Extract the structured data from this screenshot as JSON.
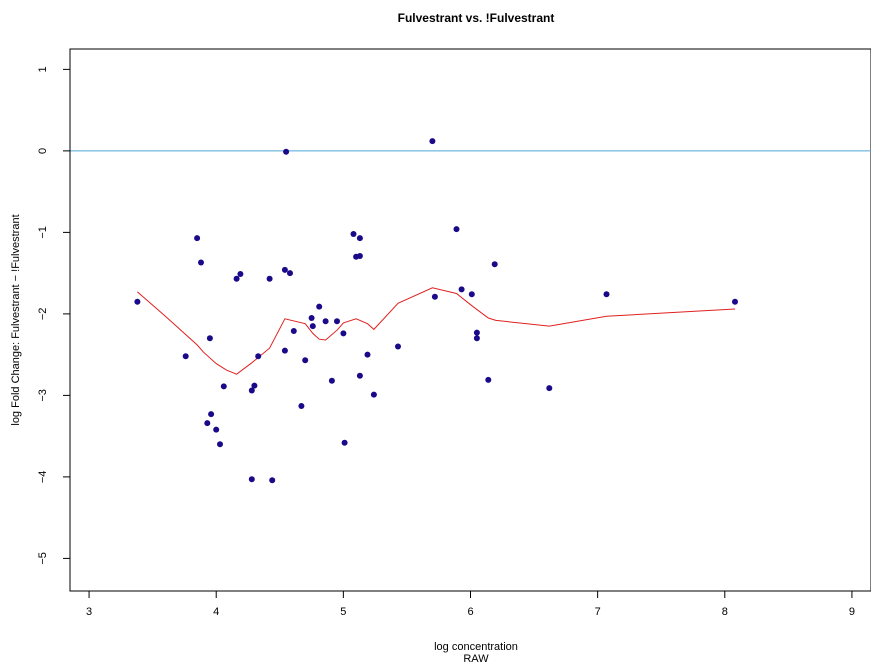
{
  "chart_data": {
    "type": "scatter",
    "title": "Fulvestrant vs. !Fulvestrant",
    "xlabel": "log concentration",
    "xlabel_sub": "RAW",
    "ylabel": "log Fold Change: Fulvestrant − !Fulvestrant",
    "xlim": [
      2.85,
      9.15
    ],
    "ylim": [
      -5.4,
      1.25
    ],
    "x_ticks": [
      "3",
      "4",
      "5",
      "6",
      "7",
      "8",
      "9"
    ],
    "y_ticks": [
      "1",
      "0",
      "−1",
      "−2",
      "−3",
      "−4",
      "−5"
    ],
    "reference_line": {
      "y": 0,
      "color": "#4da6d6"
    },
    "point_color": "#1a0a8a",
    "fit_color": "#e02020",
    "points": [
      {
        "x": 3.38,
        "y": -1.85
      },
      {
        "x": 3.76,
        "y": -2.52
      },
      {
        "x": 3.85,
        "y": -1.07
      },
      {
        "x": 3.88,
        "y": -1.37
      },
      {
        "x": 3.93,
        "y": -3.34
      },
      {
        "x": 3.95,
        "y": -2.3
      },
      {
        "x": 3.96,
        "y": -3.23
      },
      {
        "x": 4.0,
        "y": -3.42
      },
      {
        "x": 4.03,
        "y": -3.6
      },
      {
        "x": 4.06,
        "y": -2.89
      },
      {
        "x": 4.16,
        "y": -1.57
      },
      {
        "x": 4.19,
        "y": -1.51
      },
      {
        "x": 4.28,
        "y": -2.94
      },
      {
        "x": 4.28,
        "y": -4.03
      },
      {
        "x": 4.3,
        "y": -2.88
      },
      {
        "x": 4.33,
        "y": -2.52
      },
      {
        "x": 4.42,
        "y": -1.57
      },
      {
        "x": 4.44,
        "y": -4.04
      },
      {
        "x": 4.54,
        "y": -1.46
      },
      {
        "x": 4.54,
        "y": -2.45
      },
      {
        "x": 4.55,
        "y": -0.01
      },
      {
        "x": 4.58,
        "y": -1.5
      },
      {
        "x": 4.61,
        "y": -2.21
      },
      {
        "x": 4.67,
        "y": -3.13
      },
      {
        "x": 4.7,
        "y": -2.57
      },
      {
        "x": 4.75,
        "y": -2.05
      },
      {
        "x": 4.76,
        "y": -2.15
      },
      {
        "x": 4.81,
        "y": -1.91
      },
      {
        "x": 4.86,
        "y": -2.09
      },
      {
        "x": 4.91,
        "y": -2.82
      },
      {
        "x": 4.95,
        "y": -2.09
      },
      {
        "x": 5.0,
        "y": -2.24
      },
      {
        "x": 5.01,
        "y": -3.58
      },
      {
        "x": 5.08,
        "y": -1.02
      },
      {
        "x": 5.1,
        "y": -1.3
      },
      {
        "x": 5.13,
        "y": -1.07
      },
      {
        "x": 5.13,
        "y": -1.29
      },
      {
        "x": 5.13,
        "y": -2.76
      },
      {
        "x": 5.19,
        "y": -2.5
      },
      {
        "x": 5.24,
        "y": -2.99
      },
      {
        "x": 5.43,
        "y": -2.4
      },
      {
        "x": 5.7,
        "y": 0.12
      },
      {
        "x": 5.72,
        "y": -1.79
      },
      {
        "x": 5.89,
        "y": -0.96
      },
      {
        "x": 5.93,
        "y": -1.7
      },
      {
        "x": 6.01,
        "y": -1.76
      },
      {
        "x": 6.05,
        "y": -2.23
      },
      {
        "x": 6.05,
        "y": -2.3
      },
      {
        "x": 6.14,
        "y": -2.81
      },
      {
        "x": 6.19,
        "y": -1.39
      },
      {
        "x": 6.62,
        "y": -2.91
      },
      {
        "x": 7.07,
        "y": -1.76
      },
      {
        "x": 8.08,
        "y": -1.85
      }
    ],
    "fit_line": [
      {
        "x": 3.38,
        "y": -1.73
      },
      {
        "x": 3.6,
        "y": -2.03
      },
      {
        "x": 3.85,
        "y": -2.38
      },
      {
        "x": 3.9,
        "y": -2.47
      },
      {
        "x": 4.0,
        "y": -2.61
      },
      {
        "x": 4.08,
        "y": -2.69
      },
      {
        "x": 4.16,
        "y": -2.74
      },
      {
        "x": 4.28,
        "y": -2.6
      },
      {
        "x": 4.42,
        "y": -2.42
      },
      {
        "x": 4.54,
        "y": -2.06
      },
      {
        "x": 4.7,
        "y": -2.12
      },
      {
        "x": 4.76,
        "y": -2.24
      },
      {
        "x": 4.81,
        "y": -2.31
      },
      {
        "x": 4.86,
        "y": -2.32
      },
      {
        "x": 4.95,
        "y": -2.2
      },
      {
        "x": 5.0,
        "y": -2.11
      },
      {
        "x": 5.1,
        "y": -2.06
      },
      {
        "x": 5.19,
        "y": -2.12
      },
      {
        "x": 5.24,
        "y": -2.19
      },
      {
        "x": 5.43,
        "y": -1.87
      },
      {
        "x": 5.7,
        "y": -1.68
      },
      {
        "x": 5.89,
        "y": -1.75
      },
      {
        "x": 6.01,
        "y": -1.9
      },
      {
        "x": 6.14,
        "y": -2.05
      },
      {
        "x": 6.2,
        "y": -2.08
      },
      {
        "x": 6.62,
        "y": -2.15
      },
      {
        "x": 7.07,
        "y": -2.03
      },
      {
        "x": 8.08,
        "y": -1.94
      }
    ]
  }
}
